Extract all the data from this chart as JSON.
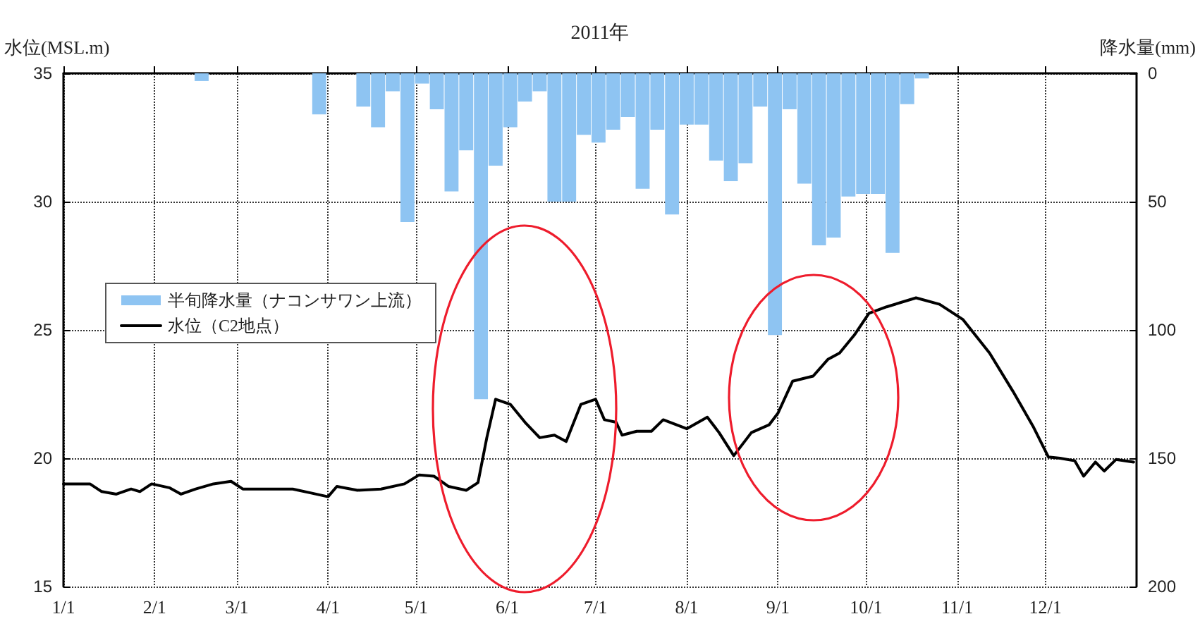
{
  "chart_data": {
    "type": "line",
    "title": "2011年",
    "ylabel": "水位(MSL.m)",
    "y2label": "降水量(mm)",
    "xlim": [
      "2011-01-01",
      "2012-01-01"
    ],
    "xticks": [
      {
        "value": "2011-01-01",
        "label": "1/1"
      },
      {
        "value": "2011-02-01",
        "label": "2/1"
      },
      {
        "value": "2011-03-01",
        "label": "3/1"
      },
      {
        "value": "2011-04-01",
        "label": "4/1"
      },
      {
        "value": "2011-05-01",
        "label": "5/1"
      },
      {
        "value": "2011-06-01",
        "label": "6/1"
      },
      {
        "value": "2011-07-01",
        "label": "7/1"
      },
      {
        "value": "2011-08-01",
        "label": "8/1"
      },
      {
        "value": "2011-09-01",
        "label": "9/1"
      },
      {
        "value": "2011-10-01",
        "label": "10/1"
      },
      {
        "value": "2011-11-01",
        "label": "11/1"
      },
      {
        "value": "2011-12-01",
        "label": "12/1"
      }
    ],
    "ylim": [
      15,
      35
    ],
    "yticks": [
      15,
      20,
      25,
      30,
      35
    ],
    "y2lim": [
      200,
      0
    ],
    "y2ticks": [
      0,
      50,
      100,
      150,
      200
    ],
    "grid": true,
    "legend": "left",
    "marker": "none",
    "line_style": "solid",
    "series": [
      {
        "name": "半旬降水量（ナコンサワン上流）",
        "type": "bar",
        "axis": "y2",
        "color": "#8ec4f2",
        "x": [
          "2011-02-17",
          "2011-03-29",
          "2011-04-13",
          "2011-04-18",
          "2011-04-23",
          "2011-04-28",
          "2011-05-03",
          "2011-05-08",
          "2011-05-13",
          "2011-05-18",
          "2011-05-23",
          "2011-05-28",
          "2011-06-02",
          "2011-06-07",
          "2011-06-12",
          "2011-06-17",
          "2011-06-22",
          "2011-06-27",
          "2011-07-02",
          "2011-07-07",
          "2011-07-12",
          "2011-07-17",
          "2011-07-22",
          "2011-07-27",
          "2011-08-01",
          "2011-08-06",
          "2011-08-11",
          "2011-08-16",
          "2011-08-21",
          "2011-08-26",
          "2011-08-31",
          "2011-09-05",
          "2011-09-10",
          "2011-09-15",
          "2011-09-20",
          "2011-09-25",
          "2011-09-30",
          "2011-10-05",
          "2011-10-10",
          "2011-10-15",
          "2011-10-20"
        ],
        "values": [
          3,
          16,
          13,
          21,
          7,
          58,
          4,
          14,
          46,
          30,
          127,
          36,
          21,
          11,
          7,
          50,
          50,
          24,
          27,
          22,
          17,
          45,
          22,
          55,
          20,
          20,
          34,
          42,
          35,
          13,
          102,
          14,
          43,
          67,
          64,
          48,
          47,
          47,
          70,
          12,
          2
        ]
      },
      {
        "name": "水位（C2地点）",
        "color": "#000000",
        "x": [
          "2011-01-01",
          "2011-01-10",
          "2011-01-14",
          "2011-01-19",
          "2011-01-24",
          "2011-01-27",
          "2011-01-31",
          "2011-02-06",
          "2011-02-10",
          "2011-02-15",
          "2011-02-21",
          "2011-02-27",
          "2011-03-03",
          "2011-03-11",
          "2011-03-20",
          "2011-03-26",
          "2011-04-01",
          "2011-04-04",
          "2011-04-11",
          "2011-04-19",
          "2011-04-27",
          "2011-05-02",
          "2011-05-07",
          "2011-05-12",
          "2011-05-18",
          "2011-05-22",
          "2011-05-25",
          "2011-05-28",
          "2011-06-02",
          "2011-06-07",
          "2011-06-12",
          "2011-06-17",
          "2011-06-21",
          "2011-06-26",
          "2011-07-01",
          "2011-07-04",
          "2011-07-08",
          "2011-07-10",
          "2011-07-15",
          "2011-07-20",
          "2011-07-24",
          "2011-08-01",
          "2011-08-08",
          "2011-08-12",
          "2011-08-17",
          "2011-08-23",
          "2011-08-29",
          "2011-09-01",
          "2011-09-06",
          "2011-09-13",
          "2011-09-18",
          "2011-09-22",
          "2011-09-27",
          "2011-10-02",
          "2011-10-08",
          "2011-10-18",
          "2011-10-26",
          "2011-11-03",
          "2011-11-12",
          "2011-11-20",
          "2011-11-27",
          "2011-12-02",
          "2011-12-06",
          "2011-12-11",
          "2011-12-14",
          "2011-12-18",
          "2011-12-21",
          "2011-12-25",
          "2011-12-31"
        ],
        "values": [
          19.0,
          19.0,
          18.7,
          18.6,
          18.8,
          18.7,
          19.0,
          18.85,
          18.6,
          18.8,
          19.0,
          19.1,
          18.8,
          18.8,
          18.8,
          18.65,
          18.5,
          18.9,
          18.75,
          18.8,
          19.0,
          19.35,
          19.3,
          18.9,
          18.75,
          19.05,
          20.8,
          22.3,
          22.1,
          21.4,
          20.8,
          20.9,
          20.65,
          22.1,
          22.3,
          21.5,
          21.4,
          20.9,
          21.05,
          21.05,
          21.5,
          21.15,
          21.6,
          21.0,
          20.1,
          21.0,
          21.3,
          21.75,
          23.0,
          23.2,
          23.85,
          24.1,
          24.8,
          25.65,
          25.9,
          26.25,
          26.0,
          25.4,
          24.1,
          22.6,
          21.2,
          20.05,
          20.0,
          19.9,
          19.3,
          19.85,
          19.5,
          19.95,
          19.85
        ]
      }
    ]
  }
}
